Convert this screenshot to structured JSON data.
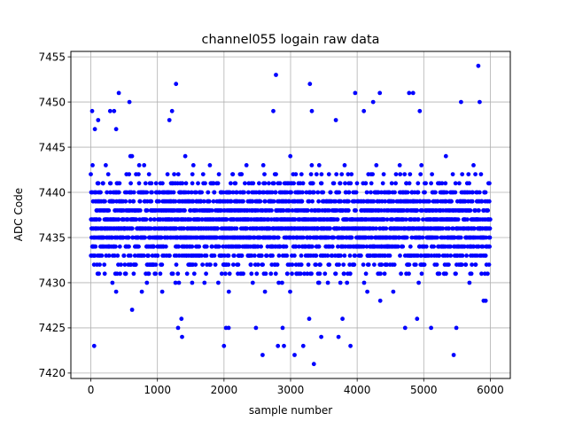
{
  "chart_data": {
    "type": "scatter",
    "title": "channel055 logain raw data",
    "xlabel": "sample number",
    "ylabel": "ADC Code",
    "xlim": [
      -300,
      6300
    ],
    "ylim": [
      7419.4,
      7455.6
    ],
    "x_ticks": [
      0,
      1000,
      2000,
      3000,
      4000,
      5000,
      6000
    ],
    "y_ticks": [
      7420,
      7425,
      7430,
      7435,
      7440,
      7445,
      7450,
      7455
    ],
    "grid": true,
    "legend": "none",
    "marker_color": "#0000ff",
    "sample_count": 6000,
    "core_band": [
      7427,
      7446
    ],
    "dense_band": [
      7429,
      7444
    ],
    "outliers": [
      [
        50,
        7423
      ],
      [
        20,
        7449
      ],
      [
        60,
        7447
      ],
      [
        110,
        7448
      ],
      [
        290,
        7449
      ],
      [
        350,
        7449
      ],
      [
        380,
        7447
      ],
      [
        420,
        7451
      ],
      [
        580,
        7450
      ],
      [
        620,
        7427
      ],
      [
        1180,
        7448
      ],
      [
        1220,
        7449
      ],
      [
        1280,
        7452
      ],
      [
        1310,
        7425
      ],
      [
        1360,
        7426
      ],
      [
        1370,
        7424
      ],
      [
        2000,
        7423
      ],
      [
        2030,
        7425
      ],
      [
        2070,
        7425
      ],
      [
        2480,
        7425
      ],
      [
        2580,
        7422
      ],
      [
        2740,
        7449
      ],
      [
        2780,
        7453
      ],
      [
        2810,
        7423
      ],
      [
        2880,
        7425
      ],
      [
        2900,
        7423
      ],
      [
        3060,
        7422
      ],
      [
        3190,
        7423
      ],
      [
        3280,
        7426
      ],
      [
        3290,
        7452
      ],
      [
        3320,
        7449
      ],
      [
        3350,
        7421
      ],
      [
        3460,
        7424
      ],
      [
        3680,
        7448
      ],
      [
        3720,
        7424
      ],
      [
        3780,
        7426
      ],
      [
        3900,
        7423
      ],
      [
        3970,
        7451
      ],
      [
        4100,
        7449
      ],
      [
        4240,
        7450
      ],
      [
        4340,
        7451
      ],
      [
        4720,
        7425
      ],
      [
        4780,
        7451
      ],
      [
        4840,
        7451
      ],
      [
        4900,
        7426
      ],
      [
        4940,
        7449
      ],
      [
        5110,
        7425
      ],
      [
        5450,
        7422
      ],
      [
        5490,
        7425
      ],
      [
        5560,
        7450
      ],
      [
        5820,
        7454
      ],
      [
        5840,
        7450
      ],
      [
        5900,
        7428
      ],
      [
        5930,
        7428
      ]
    ]
  }
}
